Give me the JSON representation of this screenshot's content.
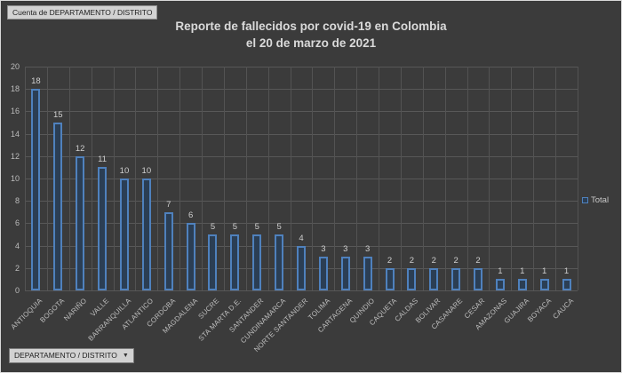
{
  "pivot": {
    "filter_label": "Cuenta de DEPARTAMENTO / DISTRITO",
    "field_button_label": "DEPARTAMENTO / DISTRITO",
    "field_button_arrow": "▼"
  },
  "chart_data": {
    "type": "bar",
    "title": "Reporte de fallecidos por covid-19 en Colombia",
    "subtitle": "el 20 de marzo de 2021",
    "categories": [
      "ANTIOQUIA",
      "BOGOTA",
      "NARIÑO",
      "VALLE",
      "BARRANQUILLA",
      "ATLANTICO",
      "CORDOBA",
      "MAGDALENA",
      "SUCRE",
      "STA MARTA D.E.",
      "SANTANDER",
      "CUNDINAMARCA",
      "NORTE SANTANDER",
      "TOLIMA",
      "CARTAGENA",
      "QUINDIO",
      "CAQUETA",
      "CALDAS",
      "BOLIVAR",
      "CASANARE",
      "CESAR",
      "AMAZONAS",
      "GUAJIRA",
      "BOYACA",
      "CAUCA"
    ],
    "values": [
      18,
      15,
      12,
      11,
      10,
      10,
      7,
      6,
      5,
      5,
      5,
      5,
      4,
      3,
      3,
      3,
      2,
      2,
      2,
      2,
      2,
      1,
      1,
      1,
      1
    ],
    "series": [
      {
        "name": "Total"
      }
    ],
    "xlabel": "",
    "ylabel": "",
    "ylim": [
      0,
      20
    ],
    "ytick_step": 2,
    "grid": "both",
    "legend_position": "right",
    "data_labels": true,
    "colors": {
      "background": "#3b3b3b",
      "bar_fill": "#2b3e54",
      "bar_border": "#4f81bd",
      "grid": "#585858",
      "axis_text": "#bcbcbc",
      "title_text": "#dadada"
    }
  }
}
